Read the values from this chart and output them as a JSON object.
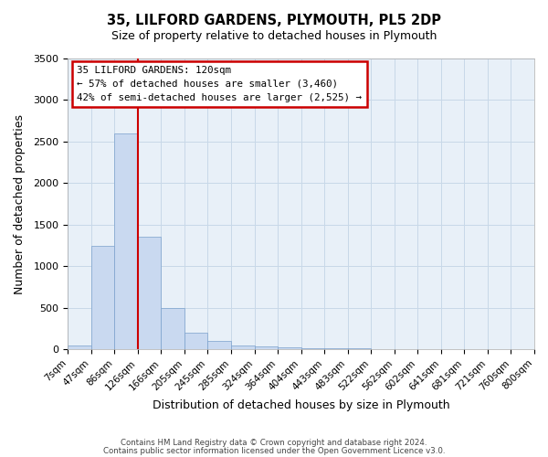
{
  "title": "35, LILFORD GARDENS, PLYMOUTH, PL5 2DP",
  "subtitle": "Size of property relative to detached houses in Plymouth",
  "xlabel": "Distribution of detached houses by size in Plymouth",
  "ylabel": "Number of detached properties",
  "bin_labels": [
    "7sqm",
    "47sqm",
    "86sqm",
    "126sqm",
    "166sqm",
    "205sqm",
    "245sqm",
    "285sqm",
    "324sqm",
    "364sqm",
    "404sqm",
    "443sqm",
    "483sqm",
    "522sqm",
    "562sqm",
    "602sqm",
    "641sqm",
    "681sqm",
    "721sqm",
    "760sqm",
    "800sqm"
  ],
  "bar_values": [
    50,
    1240,
    2600,
    1350,
    500,
    200,
    100,
    50,
    30,
    20,
    15,
    10,
    10,
    3,
    2,
    1,
    1,
    1,
    1,
    1
  ],
  "bar_color": "#c9d9f0",
  "bar_edge_color": "#7aa0cc",
  "vline_x": 3,
  "vline_color": "#cc0000",
  "ylim": [
    0,
    3500
  ],
  "yticks": [
    0,
    500,
    1000,
    1500,
    2000,
    2500,
    3000,
    3500
  ],
  "annotation_title": "35 LILFORD GARDENS: 120sqm",
  "annotation_line1": "← 57% of detached houses are smaller (3,460)",
  "annotation_line2": "42% of semi-detached houses are larger (2,525) →",
  "annotation_box_color": "#ffffff",
  "annotation_box_edge": "#cc0000",
  "footer1": "Contains HM Land Registry data © Crown copyright and database right 2024.",
  "footer2": "Contains public sector information licensed under the Open Government Licence v3.0.",
  "bg_color": "#ffffff",
  "grid_color": "#c8d8e8",
  "ax_bg_color": "#e8f0f8"
}
